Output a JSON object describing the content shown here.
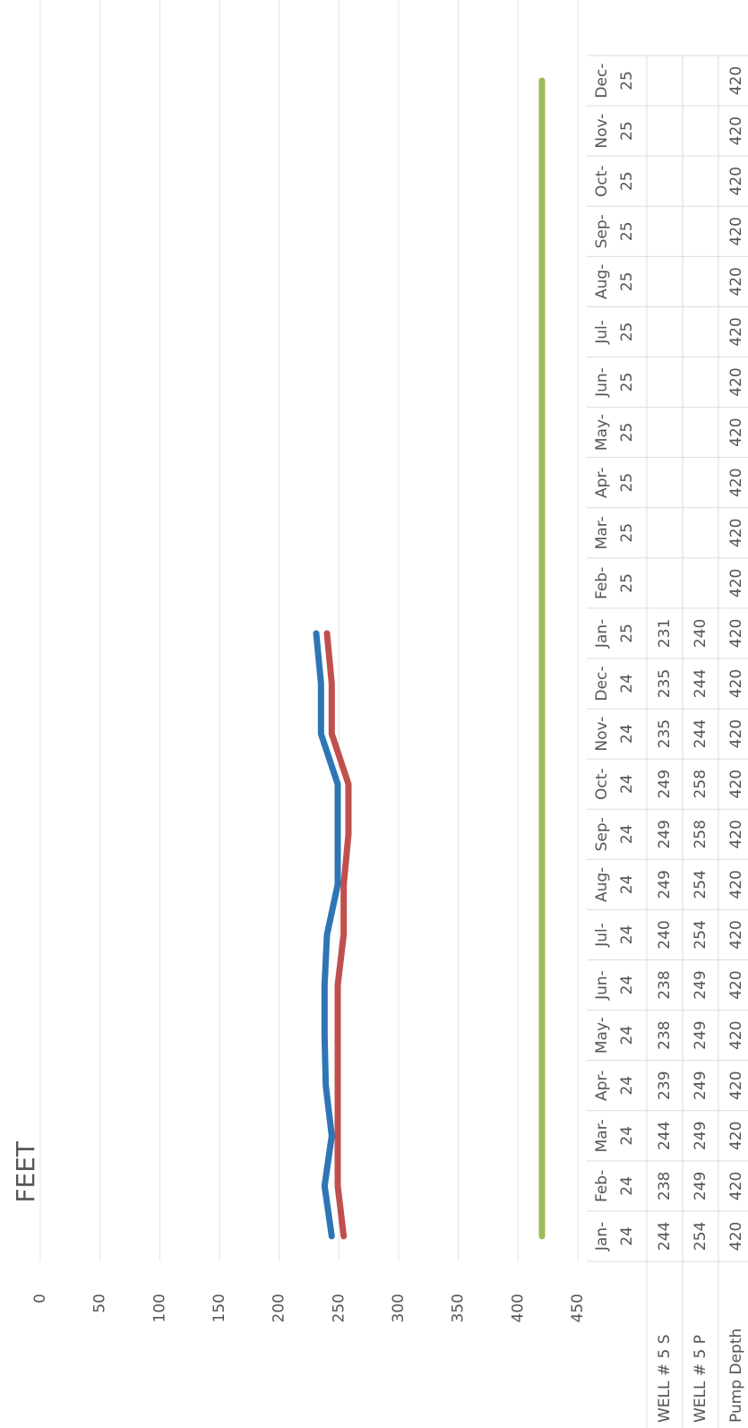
{
  "chart_data": {
    "type": "line",
    "y_label": "FEET",
    "categories": [
      "Jan-24",
      "Feb-24",
      "Mar-24",
      "Apr-24",
      "May-24",
      "Jun-24",
      "Jul-24",
      "Aug-24",
      "Sep-24",
      "Oct-24",
      "Nov-24",
      "Dec-24",
      "Jan-25",
      "Feb-25",
      "Mar-25",
      "Apr-25",
      "May-25",
      "Jun-25",
      "Jul-25",
      "Aug-25",
      "Sep-25",
      "Oct-25",
      "Nov-25",
      "Dec-25"
    ],
    "series": [
      {
        "name": "WELL # 5 S",
        "color": "#2e75b6",
        "values": [
          244,
          238,
          244,
          239,
          238,
          238,
          240,
          249,
          249,
          249,
          235,
          235,
          231,
          null,
          null,
          null,
          null,
          null,
          null,
          null,
          null,
          null,
          null,
          null
        ]
      },
      {
        "name": "WELL # 5 P",
        "color": "#c0504d",
        "values": [
          254,
          249,
          249,
          249,
          249,
          249,
          254,
          254,
          258,
          258,
          244,
          244,
          240,
          null,
          null,
          null,
          null,
          null,
          null,
          null,
          null,
          null,
          null,
          null
        ]
      },
      {
        "name": "Pump Depth",
        "color": "#9bbb59",
        "values": [
          420,
          420,
          420,
          420,
          420,
          420,
          420,
          420,
          420,
          420,
          420,
          420,
          420,
          420,
          420,
          420,
          420,
          420,
          420,
          420,
          420,
          420,
          420,
          420
        ]
      }
    ],
    "ylim": [
      0,
      450
    ],
    "yticks": [
      0,
      50,
      100,
      150,
      200,
      250,
      300,
      350,
      400,
      450
    ],
    "y_reversed": true,
    "grid": true
  }
}
